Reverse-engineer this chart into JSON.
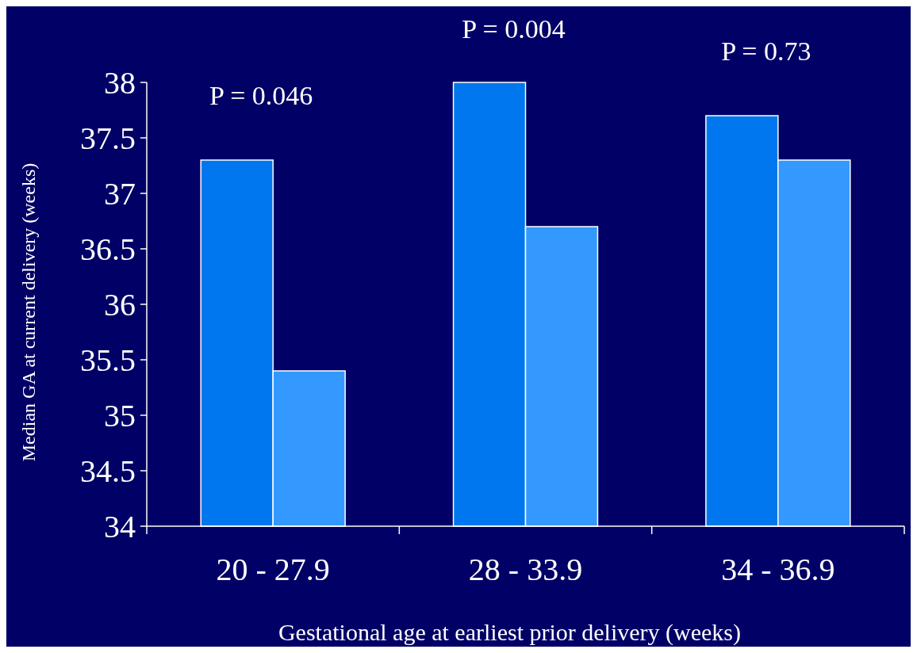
{
  "chart_data": {
    "type": "bar",
    "xlabel": "Gestational age at earliest prior delivery (weeks)",
    "ylabel": "Median GA at current delivery (weeks)",
    "categories": [
      "20 - 27.9",
      "28 - 33.9",
      "34 - 36.9"
    ],
    "series": [
      {
        "color": "#0077ee",
        "values": [
          37.3,
          38.0,
          37.7
        ]
      },
      {
        "color": "#3399ff",
        "values": [
          35.4,
          36.7,
          37.3
        ]
      }
    ],
    "ylim": [
      34,
      38
    ],
    "yticks": [
      34,
      34.5,
      35,
      35.5,
      36,
      36.5,
      37,
      37.5,
      38
    ],
    "grid": false,
    "annotations": [
      "P = 0.046",
      "P = 0.004",
      "P = 0.73"
    ]
  }
}
